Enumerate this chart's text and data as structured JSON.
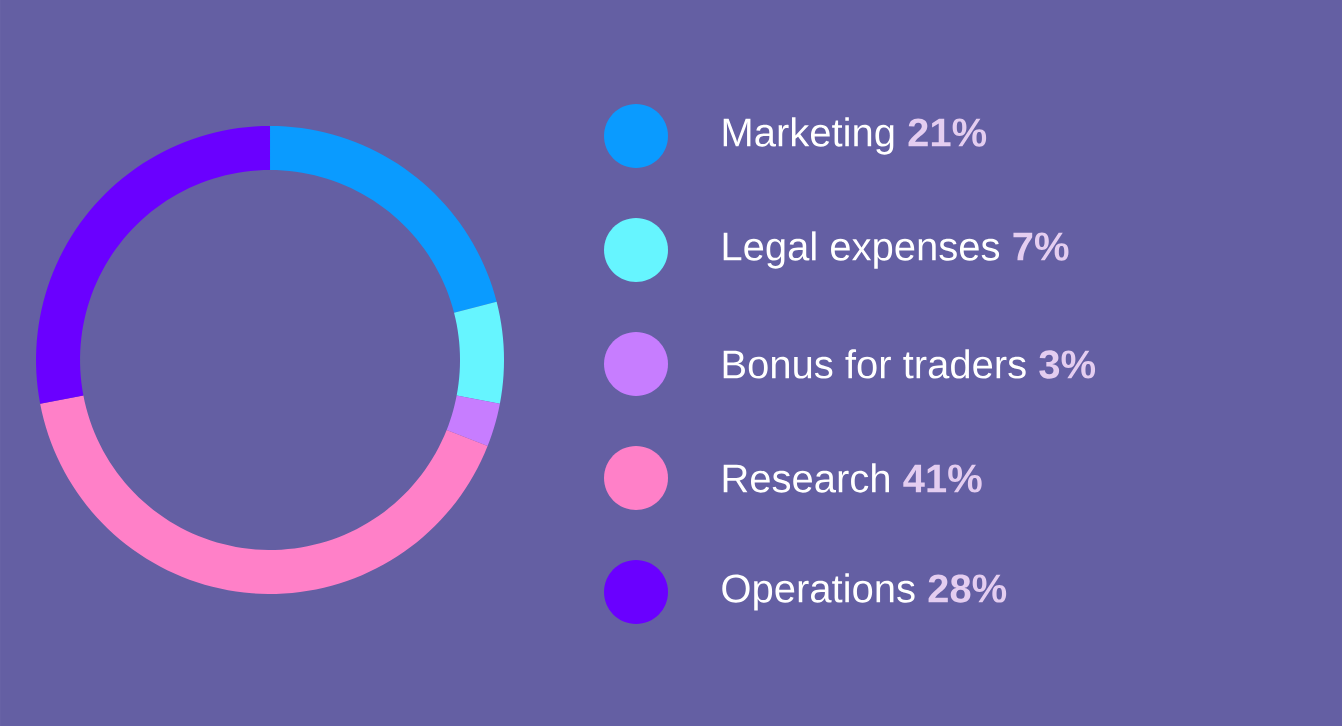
{
  "chart_data": {
    "type": "donut",
    "categories": [
      "Marketing",
      "Legal expenses",
      "Bonus for traders",
      "Research",
      "Operations"
    ],
    "values": [
      21,
      7,
      3,
      41,
      28
    ],
    "colors": [
      "#0a9bff",
      "#66f5ff",
      "#c77dff",
      "#ff80c8",
      "#6a00ff"
    ],
    "value_labels": [
      "21%",
      "7%",
      "3%",
      "41%",
      "28%"
    ],
    "legend": "right"
  }
}
